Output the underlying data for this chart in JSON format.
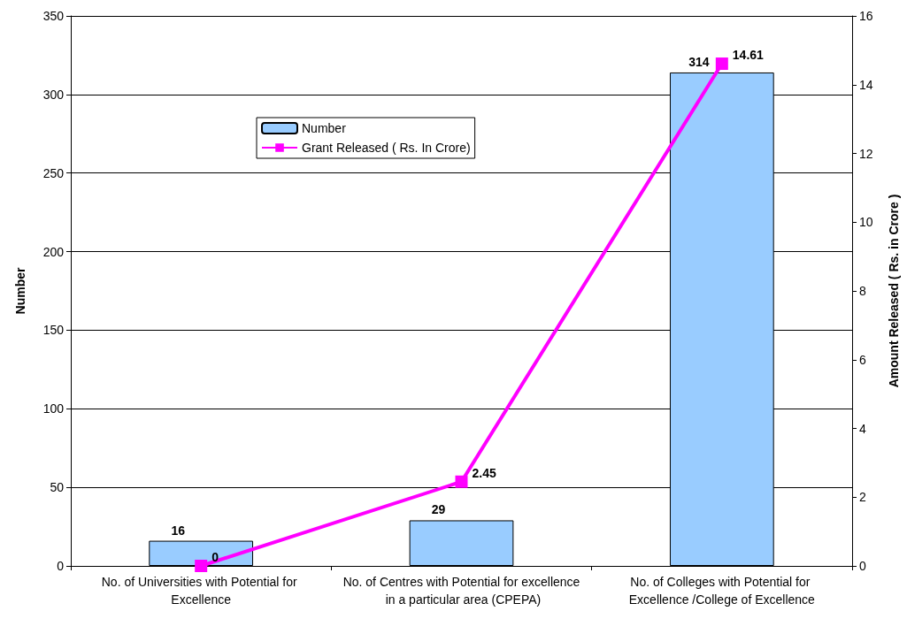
{
  "chart_data": {
    "type": "bar",
    "categories": [
      "No. of Universities with Potential for Excellence",
      "No. of Centres with Potential for excellence in a particular area (CPEPA)",
      "No. of Colleges with Potential for Excellence /College of Excellence"
    ],
    "series": [
      {
        "name": "Number",
        "color": "#99ccff",
        "values": [
          16,
          29,
          314
        ]
      },
      {
        "name": "Grant Released ( Rs. In Crore)",
        "type": "line",
        "axis": "y2",
        "color": "#ff00ff",
        "marker": "square",
        "values": [
          0,
          2.45,
          14.61
        ]
      }
    ],
    "ylabel": "Number",
    "y2label": "Amount Released ( Rs. in Crore )",
    "ylim": [
      0,
      350
    ],
    "yticks": [
      0,
      50,
      100,
      150,
      200,
      250,
      300,
      350
    ],
    "y2lim": [
      0,
      16
    ],
    "y2ticks": [
      0,
      2,
      4,
      6,
      8,
      10,
      12,
      14,
      16
    ],
    "grid": "y",
    "legend": "top",
    "data_labels": true
  }
}
